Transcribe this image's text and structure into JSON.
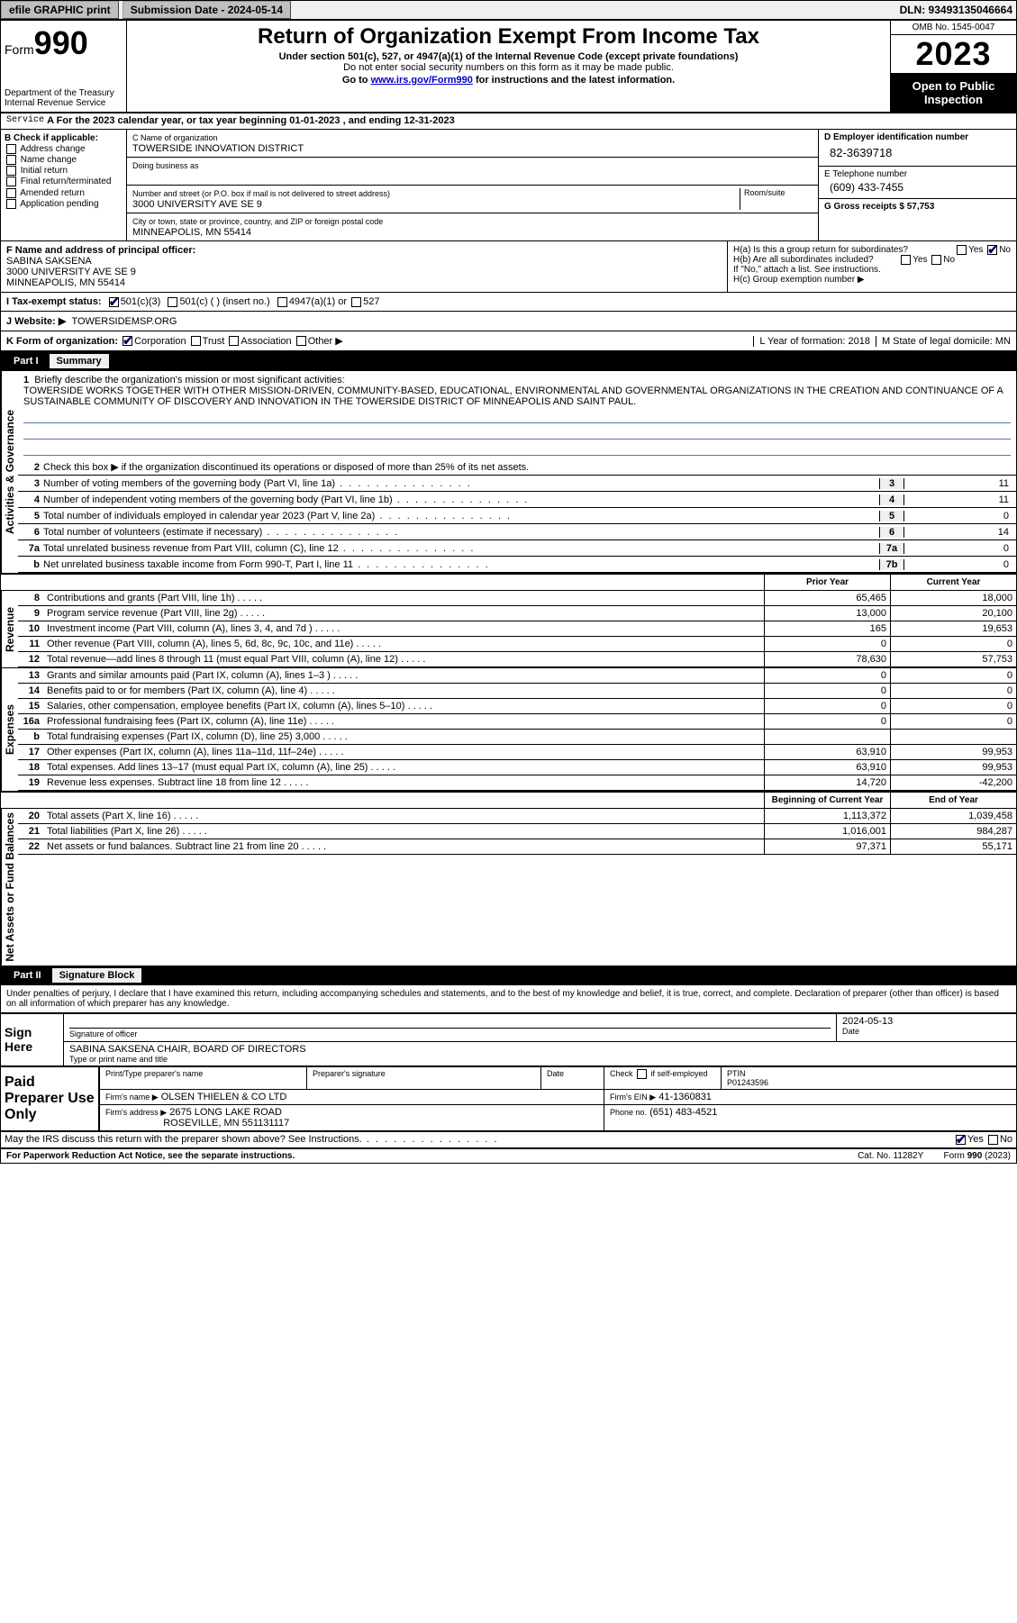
{
  "top_bar": {
    "efile_label": "efile GRAPHIC print",
    "submission_label": "Submission Date - 2024-05-14",
    "dln": "DLN: 93493135046664"
  },
  "header": {
    "form_prefix": "Form",
    "form_number": "990",
    "title": "Return of Organization Exempt From Income Tax",
    "subtitle": "Under section 501(c), 527, or 4947(a)(1) of the Internal Revenue Code (except private foundations)",
    "ssn_note": "Do not enter social security numbers on this form as it may be made public.",
    "goto": "Go to www.irs.gov/Form990 for instructions and the latest information.",
    "dept1": "Department of the Treasury",
    "dept2": "Internal Revenue Service",
    "omb": "OMB No. 1545-0047",
    "year": "2023",
    "open_public": "Open to Public Inspection"
  },
  "period": "A For the 2023 calendar year, or tax year beginning 01-01-2023   , and ending 12-31-2023",
  "sectionB": {
    "heading": "B Check if applicable:",
    "options": [
      "Address change",
      "Name change",
      "Initial return",
      "Final return/terminated",
      "Amended return",
      "Application pending"
    ]
  },
  "sectionC": {
    "name_label": "C Name of organization",
    "org_name": "TOWERSIDE INNOVATION DISTRICT",
    "dba_label": "Doing business as",
    "dba": "",
    "addr_label": "Number and street (or P.O. box if mail is not delivered to street address)",
    "addr": "3000 UNIVERSITY AVE SE 9",
    "room_label": "Room/suite",
    "city_label": "City or town, state or province, country, and ZIP or foreign postal code",
    "city": "MINNEAPOLIS, MN  55414"
  },
  "sectionD": {
    "label": "D Employer identification number",
    "ein": "82-3639718"
  },
  "sectionE": {
    "tel_label": "E Telephone number",
    "tel": "(609) 433-7455"
  },
  "sectionG": {
    "label": "G Gross receipts $ 57,753"
  },
  "sectionF": {
    "label": "F Name and address of principal officer:",
    "name": "SABINA SAKSENA",
    "addr1": "3000 UNIVERSITY AVE SE 9",
    "addr2": "MINNEAPOLIS, MN  55414"
  },
  "sectionH": {
    "a": "H(a)  Is this a group return for subordinates?",
    "b": "H(b)  Are all subordinates included?",
    "ifno": "If \"No,\" attach a list. See instructions.",
    "c": "H(c)  Group exemption number ▶"
  },
  "rowI": {
    "label": "I   Tax-exempt status:",
    "o1": "501(c)(3)",
    "o2": "501(c) (  ) (insert no.)",
    "o3": "4947(a)(1) or",
    "o4": "527"
  },
  "rowJ": {
    "label": "J   Website: ▶",
    "value": "TOWERSIDEMSP.ORG"
  },
  "rowK": {
    "label": "K Form of organization:",
    "o1": "Corporation",
    "o2": "Trust",
    "o3": "Association",
    "o4": "Other ▶",
    "l": "L Year of formation: 2018",
    "m": "M State of legal domicile: MN"
  },
  "part1": {
    "hdr_part": "Part I",
    "hdr_title": "Summary",
    "side_ag": "Activities & Governance",
    "side_rev": "Revenue",
    "side_exp": "Expenses",
    "side_net": "Net Assets or Fund Balances",
    "line1_label": "Briefly describe the organization's mission or most significant activities:",
    "mission": "TOWERSIDE WORKS TOGETHER WITH OTHER MISSION-DRIVEN, COMMUNITY-BASED, EDUCATIONAL, ENVIRONMENTAL AND GOVERNMENTAL ORGANIZATIONS IN THE CREATION AND CONTINUANCE OF A SUSTAINABLE COMMUNITY OF DISCOVERY AND INNOVATION IN THE TOWERSIDE DISTRICT OF MINNEAPOLIS AND SAINT PAUL.",
    "line2": "Check this box ▶      if the organization discontinued its operations or disposed of more than 25% of its net assets.",
    "rows_ag": [
      {
        "n": "3",
        "d": "Number of voting members of the governing body (Part VI, line 1a)",
        "bn": "3",
        "v": "11"
      },
      {
        "n": "4",
        "d": "Number of independent voting members of the governing body (Part VI, line 1b)",
        "bn": "4",
        "v": "11"
      },
      {
        "n": "5",
        "d": "Total number of individuals employed in calendar year 2023 (Part V, line 2a)",
        "bn": "5",
        "v": "0"
      },
      {
        "n": "6",
        "d": "Total number of volunteers (estimate if necessary)",
        "bn": "6",
        "v": "14"
      },
      {
        "n": "7a",
        "d": "Total unrelated business revenue from Part VIII, column (C), line 12",
        "bn": "7a",
        "v": "0"
      },
      {
        "n": "b",
        "d": "Net unrelated business taxable income from Form 990-T, Part I, line 11",
        "bn": "7b",
        "v": "0"
      }
    ],
    "prior_hdr": "Prior Year",
    "current_hdr": "Current Year",
    "rows_rev": [
      {
        "n": "8",
        "d": "Contributions and grants (Part VIII, line 1h)",
        "p": "65,465",
        "c": "18,000"
      },
      {
        "n": "9",
        "d": "Program service revenue (Part VIII, line 2g)",
        "p": "13,000",
        "c": "20,100"
      },
      {
        "n": "10",
        "d": "Investment income (Part VIII, column (A), lines 3, 4, and 7d )",
        "p": "165",
        "c": "19,653"
      },
      {
        "n": "11",
        "d": "Other revenue (Part VIII, column (A), lines 5, 6d, 8c, 9c, 10c, and 11e)",
        "p": "0",
        "c": "0"
      },
      {
        "n": "12",
        "d": "Total revenue—add lines 8 through 11 (must equal Part VIII, column (A), line 12)",
        "p": "78,630",
        "c": "57,753"
      }
    ],
    "rows_exp": [
      {
        "n": "13",
        "d": "Grants and similar amounts paid (Part IX, column (A), lines 1–3 )",
        "p": "0",
        "c": "0"
      },
      {
        "n": "14",
        "d": "Benefits paid to or for members (Part IX, column (A), line 4)",
        "p": "0",
        "c": "0"
      },
      {
        "n": "15",
        "d": "Salaries, other compensation, employee benefits (Part IX, column (A), lines 5–10)",
        "p": "0",
        "c": "0"
      },
      {
        "n": "16a",
        "d": "Professional fundraising fees (Part IX, column (A), line 11e)",
        "p": "0",
        "c": "0"
      },
      {
        "n": "b",
        "d": "Total fundraising expenses (Part IX, column (D), line 25) 3,000",
        "p": "",
        "c": ""
      },
      {
        "n": "17",
        "d": "Other expenses (Part IX, column (A), lines 11a–11d, 11f–24e)",
        "p": "63,910",
        "c": "99,953"
      },
      {
        "n": "18",
        "d": "Total expenses. Add lines 13–17 (must equal Part IX, column (A), line 25)",
        "p": "63,910",
        "c": "99,953"
      },
      {
        "n": "19",
        "d": "Revenue less expenses. Subtract line 18 from line 12",
        "p": "14,720",
        "c": "-42,200"
      }
    ],
    "beg_hdr": "Beginning of Current Year",
    "end_hdr": "End of Year",
    "rows_net": [
      {
        "n": "20",
        "d": "Total assets (Part X, line 16)",
        "p": "1,113,372",
        "c": "1,039,458"
      },
      {
        "n": "21",
        "d": "Total liabilities (Part X, line 26)",
        "p": "1,016,001",
        "c": "984,287"
      },
      {
        "n": "22",
        "d": "Net assets or fund balances. Subtract line 21 from line 20",
        "p": "97,371",
        "c": "55,171"
      }
    ]
  },
  "part2": {
    "hdr_part": "Part II",
    "hdr_title": "Signature Block",
    "penalty": "Under penalties of perjury, I declare that I have examined this return, including accompanying schedules and statements, and to the best of my knowledge and belief, it is true, correct, and complete. Declaration of preparer (other than officer) is based on all information of which preparer has any knowledge.",
    "sign_here": "Sign Here",
    "sig_of_officer": "Signature of officer",
    "sig_date": "2024-05-13",
    "date_lbl": "Date",
    "officer_name": "SABINA SAKSENA CHAIR, BOARD OF DIRECTORS",
    "type_lbl": "Type or print name and title"
  },
  "paid": {
    "label": "Paid Preparer Use Only",
    "h1": "Print/Type preparer's name",
    "h2": "Preparer's signature",
    "h3": "Date",
    "h4": "Check         if self-employed",
    "h5": "PTIN",
    "ptin": "P01243596",
    "firm_name_lbl": "Firm's name      ▶",
    "firm_name": "OLSEN THIELEN & CO LTD",
    "firm_ein_lbl": "Firm's EIN ▶",
    "firm_ein": "41-1360831",
    "firm_addr_lbl": "Firm's address ▶",
    "firm_addr1": "2675 LONG LAKE ROAD",
    "firm_addr2": "ROSEVILLE, MN  551131117",
    "phone_lbl": "Phone no.",
    "phone": "(651) 483-4521"
  },
  "discuss": "May the IRS discuss this return with the preparer shown above? See Instructions.",
  "footer": {
    "left": "For Paperwork Reduction Act Notice, see the separate instructions.",
    "mid": "Cat. No. 11282Y",
    "right": "Form 990 (2023)"
  },
  "yes": "Yes",
  "no": "No"
}
